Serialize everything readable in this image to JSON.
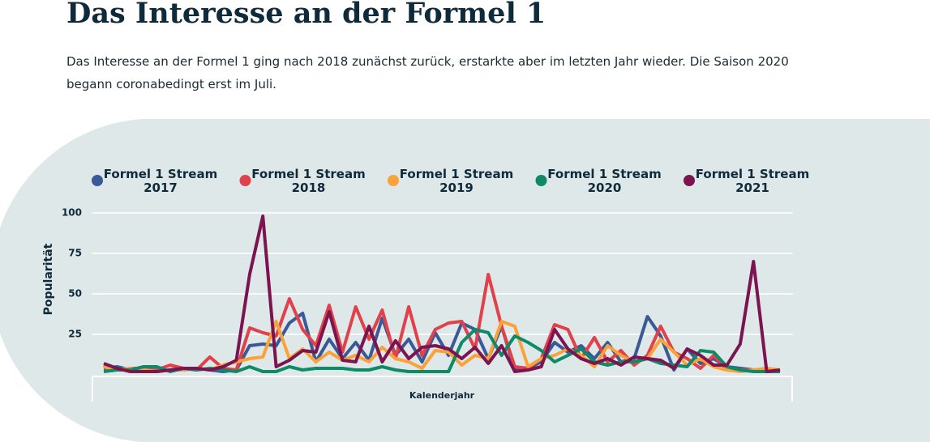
{
  "chart_data": {
    "type": "line",
    "title": "Das Interesse an der Formel 1",
    "subtitle": "Das Interesse an der Formel 1 ging nach 2018 zunächst zurück, erstarkte aber im letzten Jahr wieder. Die Saison 2020 begann coronabedingt erst im Juli.",
    "x_label": "Kalenderjahr",
    "y_label": "Popularität",
    "categories": [
      null,
      null,
      null,
      null,
      null,
      null,
      null,
      null,
      null,
      null,
      null,
      null,
      null,
      null,
      null,
      null,
      null,
      null,
      null,
      null,
      null,
      null,
      null,
      null,
      null,
      null,
      null,
      null,
      null,
      null,
      null,
      null,
      null,
      null,
      null,
      null,
      null,
      null,
      null,
      null,
      null,
      null,
      null,
      null,
      null,
      null,
      null,
      null,
      null,
      null,
      null,
      null
    ],
    "ylim": [
      0,
      100
    ],
    "yticks": [
      25,
      50,
      75,
      100
    ],
    "grid": true,
    "series": [
      {
        "name": "Formel 1 Stream 2017",
        "color": "#3a5a97",
        "values": [
          4,
          5,
          3,
          3,
          2,
          3,
          3,
          4,
          3,
          2,
          3,
          18,
          19,
          18,
          32,
          38,
          8,
          22,
          10,
          20,
          9,
          35,
          12,
          22,
          8,
          26,
          12,
          32,
          28,
          10,
          30,
          3,
          4,
          8,
          20,
          14,
          18,
          10,
          20,
          8,
          10,
          36,
          24,
          3,
          16,
          7,
          10,
          5,
          4,
          3,
          3,
          2
        ]
      },
      {
        "name": "Formel 1 Stream 2018",
        "color": "#e0414a",
        "values": [
          6,
          3,
          4,
          4,
          3,
          6,
          4,
          3,
          11,
          4,
          3,
          29,
          26,
          24,
          47,
          28,
          18,
          43,
          14,
          42,
          22,
          40,
          10,
          42,
          12,
          28,
          32,
          33,
          16,
          62,
          30,
          5,
          4,
          10,
          31,
          28,
          10,
          23,
          8,
          15,
          6,
          12,
          30,
          14,
          10,
          4,
          12,
          3,
          3,
          3,
          3,
          2
        ]
      },
      {
        "name": "Formel 1 Stream 2019",
        "color": "#f9a23a",
        "values": [
          5,
          3,
          4,
          3,
          2,
          3,
          3,
          4,
          3,
          6,
          8,
          10,
          11,
          33,
          10,
          16,
          8,
          14,
          9,
          12,
          8,
          17,
          10,
          8,
          4,
          15,
          14,
          6,
          12,
          10,
          33,
          30,
          5,
          10,
          12,
          16,
          12,
          5,
          18,
          12,
          8,
          10,
          22,
          14,
          6,
          10,
          5,
          3,
          2,
          3,
          4,
          3
        ]
      },
      {
        "name": "Formel 1 Stream 2020",
        "color": "#0f8a68",
        "values": [
          2,
          3,
          3,
          5,
          5,
          2,
          4,
          3,
          4,
          3,
          2,
          5,
          2,
          2,
          5,
          3,
          4,
          4,
          4,
          3,
          3,
          5,
          3,
          2,
          2,
          2,
          2,
          20,
          28,
          26,
          12,
          24,
          20,
          15,
          8,
          12,
          16,
          8,
          6,
          8,
          8,
          10,
          7,
          6,
          5,
          15,
          14,
          5,
          3,
          2,
          2,
          2
        ]
      },
      {
        "name": "Formel 1 Stream 2021",
        "color": "#7b1450",
        "values": [
          7,
          4,
          2,
          2,
          2,
          3,
          4,
          4,
          3,
          5,
          9,
          62,
          98,
          5,
          9,
          15,
          14,
          39,
          9,
          8,
          30,
          8,
          21,
          10,
          17,
          18,
          16,
          10,
          17,
          7,
          18,
          2,
          3,
          5,
          28,
          16,
          10,
          7,
          10,
          6,
          11,
          10,
          9,
          4,
          16,
          12,
          6,
          6,
          19,
          70,
          2,
          3
        ]
      }
    ]
  }
}
